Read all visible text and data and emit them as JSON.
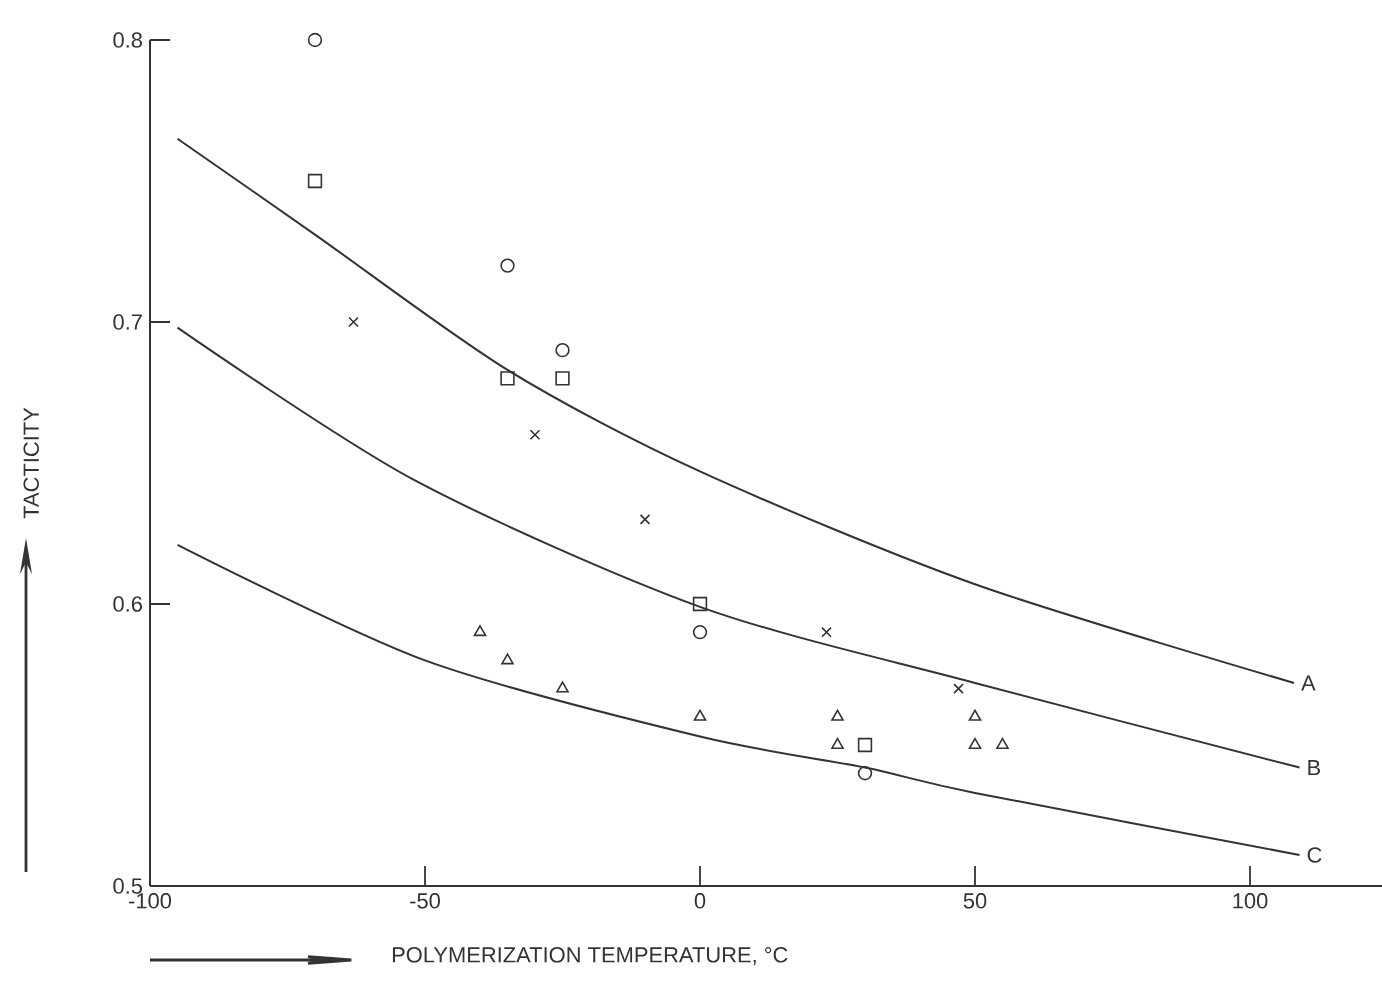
{
  "chart_data": {
    "type": "scatter",
    "xlabel": "POLYMERIZATION TEMPERATURE, °C",
    "ylabel": "TACTICITY",
    "xlim": [
      -100,
      124
    ],
    "xticks": [
      -100,
      -50,
      0,
      50,
      100
    ],
    "ylim": [
      0.5,
      0.8
    ],
    "yticks": [
      {
        "value": 0.5,
        "label": "0.5"
      },
      {
        "value": 0.6,
        "label": "0.6"
      },
      {
        "value": 0.7,
        "label": "0.7"
      },
      {
        "value": 0.8,
        "label": "0.8"
      }
    ],
    "grid": false,
    "series": [
      {
        "marker": "circle",
        "color": "#333333",
        "x": [
          -70,
          -35,
          -25,
          0,
          30
        ],
        "values": [
          0.8,
          0.72,
          0.69,
          0.59,
          0.54
        ]
      },
      {
        "marker": "square",
        "color": "#333333",
        "x": [
          -70,
          -35,
          -25,
          0,
          30
        ],
        "values": [
          0.75,
          0.68,
          0.68,
          0.6,
          0.55
        ]
      },
      {
        "marker": "cross",
        "color": "#333333",
        "x": [
          -63,
          -30,
          -10,
          23,
          47
        ],
        "values": [
          0.7,
          0.66,
          0.63,
          0.59,
          0.57
        ]
      },
      {
        "marker": "triangle",
        "color": "#333333",
        "x": [
          -40,
          -35,
          -25,
          0,
          25,
          25,
          50,
          50,
          55
        ],
        "values": [
          0.59,
          0.58,
          0.57,
          0.56,
          0.56,
          0.55,
          0.56,
          0.55,
          0.55
        ]
      },
      {
        "type": "line",
        "name": "A",
        "color": "#333333",
        "line_style": "solid",
        "x": [
          -95,
          -70,
          -35,
          0,
          50,
          108
        ],
        "values": [
          0.765,
          0.731,
          0.683,
          0.647,
          0.607,
          0.572
        ]
      },
      {
        "type": "line",
        "name": "B",
        "color": "#333333",
        "line_style": "solid",
        "x": [
          -95,
          -52,
          0,
          50,
          109
        ],
        "values": [
          0.698,
          0.644,
          0.599,
          0.572,
          0.542
        ]
      },
      {
        "type": "line",
        "name": "C",
        "color": "#333333",
        "line_style": "solid",
        "x": [
          -95,
          -50,
          0,
          30,
          50,
          109
        ],
        "values": [
          0.621,
          0.58,
          0.553,
          0.542,
          0.533,
          0.511
        ]
      }
    ]
  }
}
